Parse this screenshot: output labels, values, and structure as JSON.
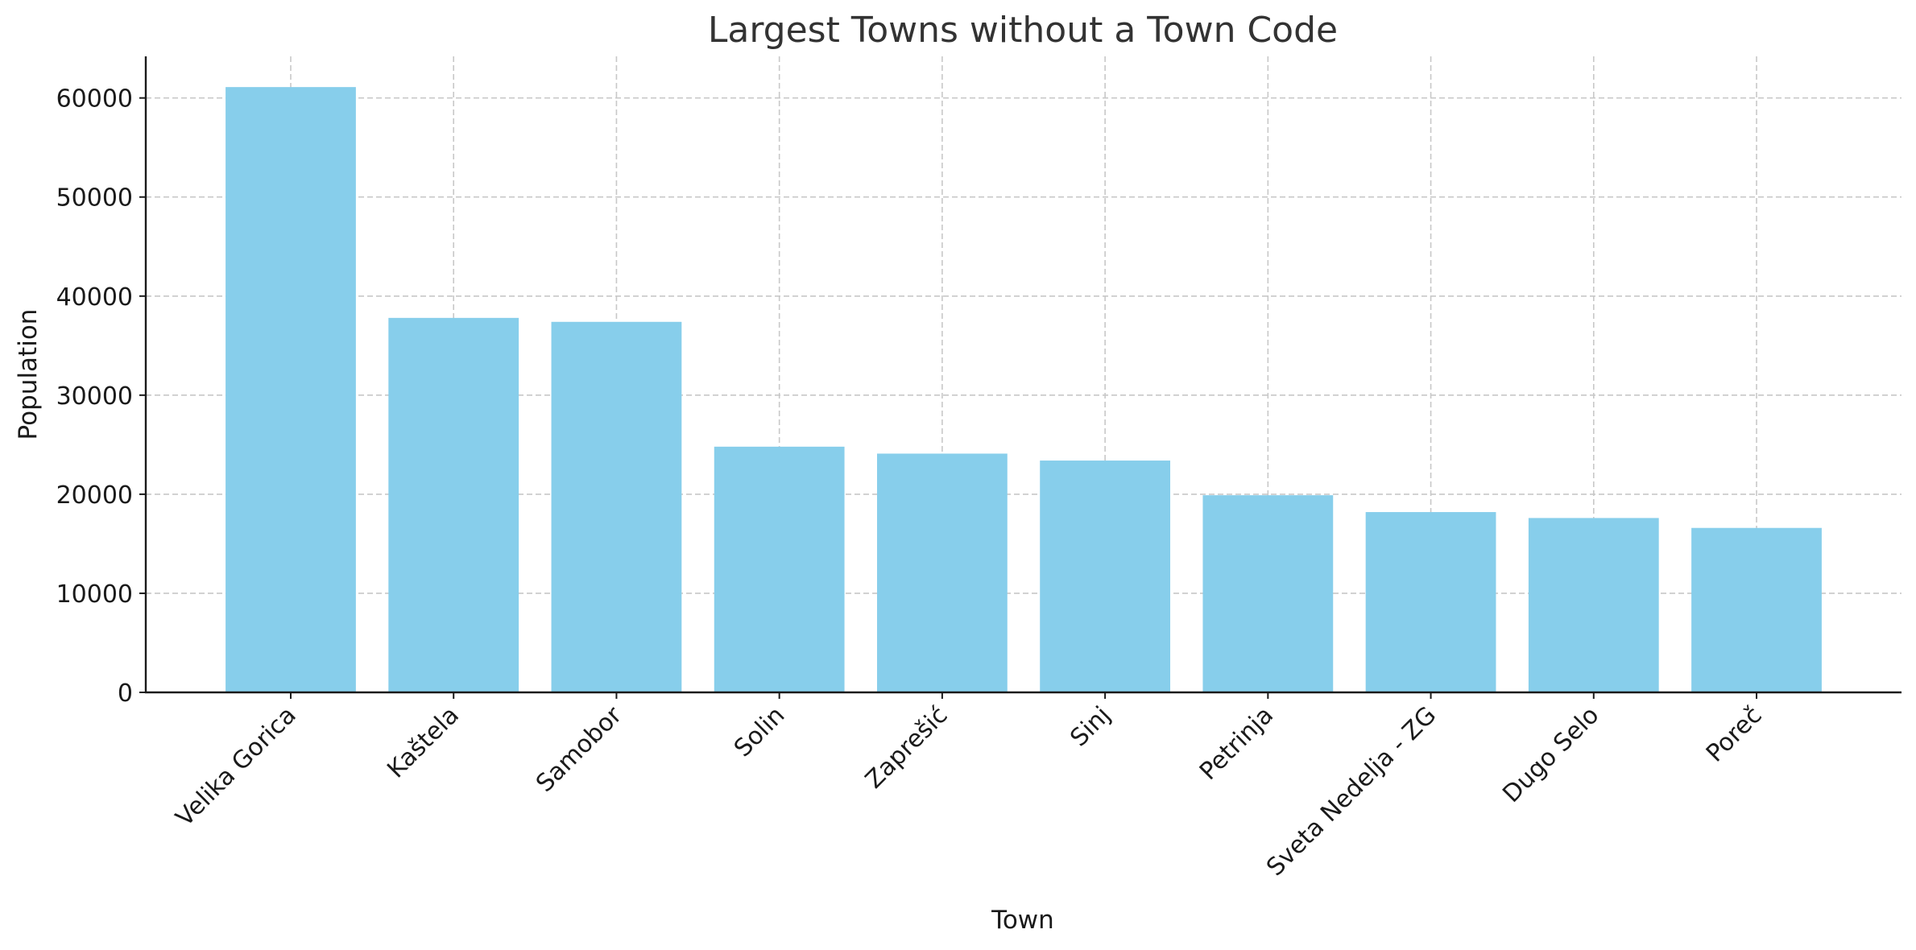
{
  "chart_data": {
    "type": "bar",
    "title": "Largest Towns without a Town Code",
    "xlabel": "Town",
    "ylabel": "Population",
    "categories": [
      "Velika Gorica",
      "Kaštela",
      "Samobor",
      "Solin",
      "Zaprešić",
      "Sinj",
      "Petrinja",
      "Sveta Nedelja - ZG",
      "Dugo Selo",
      "Poreč"
    ],
    "values": [
      61100,
      37800,
      37400,
      24800,
      24100,
      23400,
      19900,
      18200,
      17600,
      16600
    ],
    "ylim": [
      0,
      64200
    ],
    "yticks": [
      0,
      10000,
      20000,
      30000,
      40000,
      50000,
      60000
    ],
    "grid": true,
    "bar_color": "#87CEEB",
    "x_tick_rotation": 45
  }
}
